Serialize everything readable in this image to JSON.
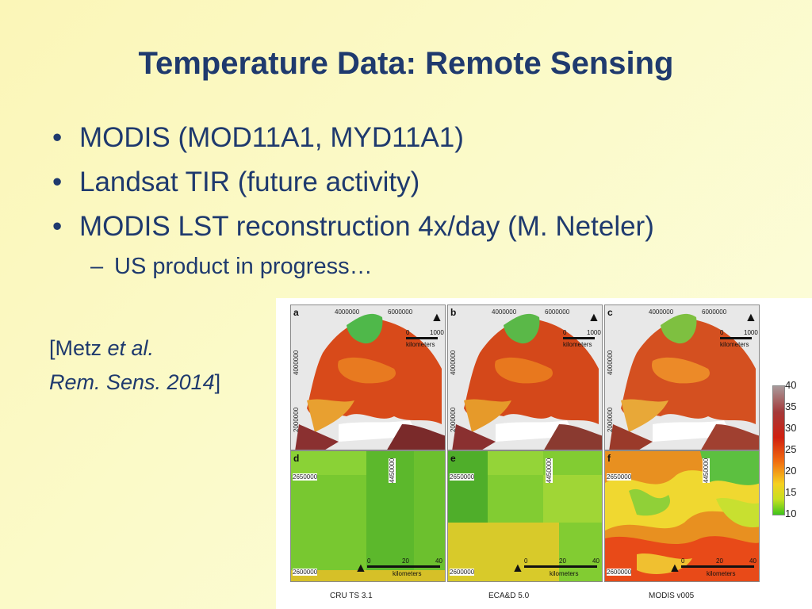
{
  "slide": {
    "title": "Temperature Data: Remote Sensing",
    "bullets": [
      "MODIS (MOD11A1, MYD11A1)",
      "Landsat TIR (future activity)",
      "MODIS LST reconstruction 4x/day (M. Neteler)"
    ],
    "sub_bullet": "US product in progress…",
    "citation": {
      "open": "[Metz ",
      "etal": "et al.",
      "journal": "Rem. Sens. 2014",
      "close": "]"
    }
  },
  "figure": {
    "top_panels": [
      {
        "label": "a"
      },
      {
        "label": "b"
      },
      {
        "label": "c"
      }
    ],
    "bottom_panels": [
      {
        "label": "d"
      },
      {
        "label": "e"
      },
      {
        "label": "f"
      }
    ],
    "top_ticks_x": [
      "4000000",
      "6000000"
    ],
    "top_ticks_y": [
      "4000000",
      "2000000"
    ],
    "bottom_tick_x": "4450000",
    "bottom_ticks_y": [
      "2650000",
      "2600000"
    ],
    "top_scale": {
      "start": "0",
      "end": "1000",
      "unit": "kilometers"
    },
    "bottom_scale": {
      "ticks": [
        "0",
        "20",
        "40"
      ],
      "unit": "kilometers"
    },
    "captions": [
      "CRU TS 3.1",
      "ECA&D 5.0",
      "MODIS v005"
    ],
    "colorbar_labels": [
      "40",
      "35",
      "30",
      "25",
      "20",
      "15",
      "10"
    ]
  }
}
